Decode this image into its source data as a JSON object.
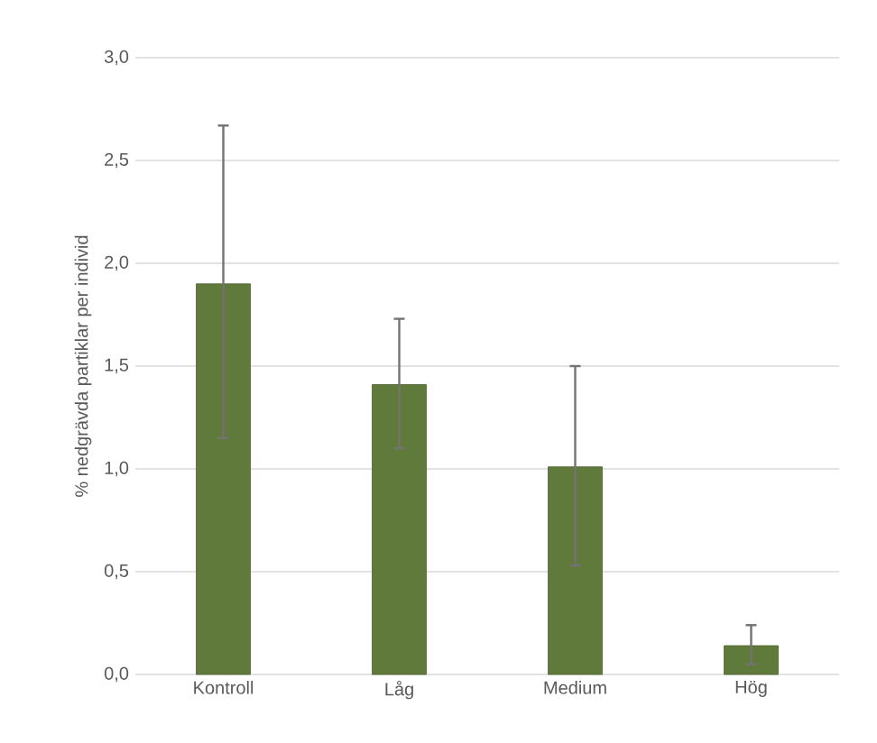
{
  "chart_data": {
    "type": "bar",
    "ylabel": "% nedgrävda partiklar per individ",
    "categories": [
      "Kontroll",
      "Låg",
      "Medium",
      "Hög"
    ],
    "values": [
      1.9,
      1.41,
      1.01,
      0.14
    ],
    "color": "#5f7a3a",
    "errors": [
      [
        1.15,
        2.67
      ],
      [
        1.1,
        1.73
      ],
      [
        0.53,
        1.5
      ],
      [
        0.05,
        0.24
      ]
    ],
    "ylim": [
      0,
      3
    ],
    "yticks": [
      {
        "value": 0,
        "label": "0,0"
      },
      {
        "value": 0.5,
        "label": "0,5"
      },
      {
        "value": 1,
        "label": "1,0"
      },
      {
        "value": 1.5,
        "label": "1,5"
      },
      {
        "value": 2,
        "label": "2,0"
      },
      {
        "value": 2.5,
        "label": "2,5"
      },
      {
        "value": 3,
        "label": "3,0"
      }
    ],
    "grid": "y"
  }
}
